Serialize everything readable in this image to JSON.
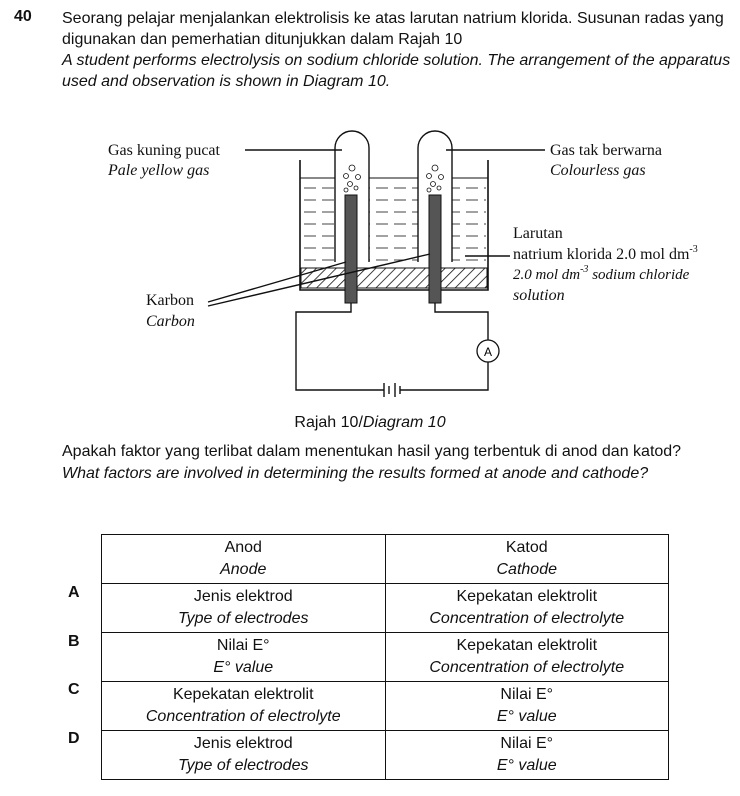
{
  "question": {
    "number": "40",
    "stem_ms": "Seorang pelajar menjalankan elektrolisis ke atas larutan natrium klorida.  Susunan radas yang digunakan dan pemerhatian ditunjukkan dalam Rajah 10",
    "stem_en": "A student performs electrolysis on sodium chloride solution. The arrangement of the apparatus used and observation is shown in Diagram 10."
  },
  "diagram": {
    "label_gas_left_ms": "Gas kuning pucat",
    "label_gas_left_en": "Pale yellow gas",
    "label_gas_right_ms": "Gas tak berwarna",
    "label_gas_right_en": "Colourless gas",
    "label_solution_ms_1": "Larutan",
    "label_solution_ms_2": "natrium klorida 2.0 mol dm",
    "label_solution_ms_exp": "-3",
    "label_solution_en_1": "2.0 mol dm",
    "label_solution_en_exp": "-3",
    "label_solution_en_2": " sodium chloride",
    "label_solution_en_3": "solution",
    "label_carbon_ms": "Karbon",
    "label_carbon_en": "Carbon",
    "ammeter": "A",
    "caption_ms": "Rajah 10/",
    "caption_en": "Diagram 10"
  },
  "question2": {
    "ms": "Apakah faktor yang terlibat dalam menentukan hasil yang terbentuk di anod dan katod?",
    "en": "What factors are involved in determining the results formed at anode and cathode?"
  },
  "table": {
    "header": {
      "anode_ms": "Anod",
      "anode_en": "Anode",
      "cathode_ms": "Katod",
      "cathode_en": "Cathode"
    },
    "options": [
      {
        "letter": "A",
        "anode_ms": "Jenis elektrod",
        "anode_en": "Type of electrodes",
        "cathode_ms": "Kepekatan elektrolit",
        "cathode_en": "Concentration of electrolyte"
      },
      {
        "letter": "B",
        "anode_ms": "Nilai E°",
        "anode_en": "E° value",
        "cathode_ms": "Kepekatan elektrolit",
        "cathode_en": "Concentration of electrolyte"
      },
      {
        "letter": "C",
        "anode_ms": "Kepekatan elektrolit",
        "anode_en": "Concentration of electrolyte",
        "cathode_ms": "Nilai E°",
        "cathode_en": "E° value"
      },
      {
        "letter": "D",
        "anode_ms": "Jenis elektrod",
        "anode_en": "Type of electrodes",
        "cathode_ms": "Nilai E°",
        "cathode_en": "E° value"
      }
    ]
  }
}
